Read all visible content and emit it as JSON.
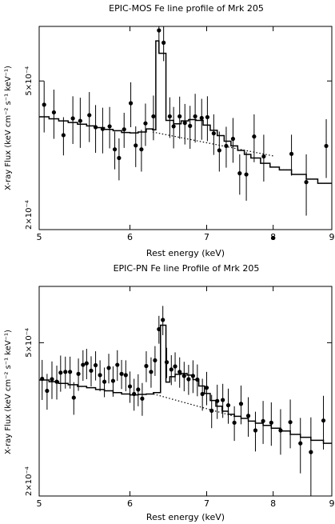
{
  "chart_data": [
    {
      "type": "scatter",
      "title": "EPIC-MOS Fe line profile of Mrk 205",
      "xlabel": "Rest energy (keV)",
      "ylabel": "X-ray Flux (keV cm⁻² s⁻¹ keV⁻¹)",
      "xscale": "log",
      "yscale": "log",
      "xlim": [
        5,
        9
      ],
      "ylim": [
        0.0002,
        0.0007
      ],
      "xticks": [
        5,
        6,
        7,
        8,
        9
      ],
      "yticks": [
        {
          "value": 0.0002,
          "label": "2×10⁻⁴"
        },
        {
          "value": 0.0005,
          "label": "5×10⁻⁴"
        }
      ],
      "series": [
        {
          "role": "data",
          "points": [
            [
              5.05,
              0.000432,
              6.8e-05
            ],
            [
              5.15,
              0.000412,
              6.2e-05
            ],
            [
              5.25,
              0.000358,
              4.2e-05
            ],
            [
              5.35,
              0.000397,
              5.8e-05
            ],
            [
              5.43,
              0.000391,
              6e-05
            ],
            [
              5.53,
              0.000405,
              6.2e-05
            ],
            [
              5.6,
              0.000376,
              5.5e-05
            ],
            [
              5.68,
              0.000372,
              5.2e-05
            ],
            [
              5.76,
              0.000378,
              4.8e-05
            ],
            [
              5.82,
              0.000328,
              3.8e-05
            ],
            [
              5.87,
              0.000311,
              4e-05
            ],
            [
              5.93,
              0.000371,
              4e-05
            ],
            [
              6.01,
              0.000436,
              6e-05
            ],
            [
              6.07,
              0.000336,
              4.2e-05
            ],
            [
              6.14,
              0.000328,
              4.2e-05
            ],
            [
              6.19,
              0.000385,
              5e-05
            ],
            [
              6.29,
              0.000402,
              5.5e-05
            ],
            [
              6.36,
              0.000683,
              7.2e-05
            ],
            [
              6.42,
              0.000633,
              6.8e-05
            ],
            [
              6.5,
              0.000402,
              5e-05
            ],
            [
              6.55,
              0.000378,
              4.8e-05
            ],
            [
              6.63,
              0.000402,
              5.2e-05
            ],
            [
              6.7,
              0.000386,
              4.8e-05
            ],
            [
              6.77,
              0.000379,
              5e-05
            ],
            [
              6.84,
              0.000402,
              6e-05
            ],
            [
              6.93,
              0.000398,
              5e-05
            ],
            [
              7.01,
              0.0004,
              5.5e-05
            ],
            [
              7.1,
              0.000362,
              4.5e-05
            ],
            [
              7.18,
              0.000326,
              4e-05
            ],
            [
              7.28,
              0.000335,
              4.2e-05
            ],
            [
              7.38,
              0.00035,
              4.8e-05
            ],
            [
              7.48,
              0.000283,
              3.5e-05
            ],
            [
              7.58,
              0.000281,
              4.2e-05
            ],
            [
              7.7,
              0.000355,
              5.2e-05
            ],
            [
              7.85,
              0.000314,
              4.5e-05
            ],
            [
              8.0,
              0.00019,
              1e-05
            ],
            [
              8.3,
              0.000319,
              4e-05
            ],
            [
              8.55,
              0.000268,
              5e-05
            ],
            [
              8.9,
              0.000335,
              6e-05
            ]
          ]
        },
        {
          "role": "model",
          "step": [
            [
              5.0,
              0.000401
            ],
            [
              5.1,
              0.000396
            ],
            [
              5.2,
              0.000391
            ],
            [
              5.3,
              0.000387
            ],
            [
              5.4,
              0.000383
            ],
            [
              5.5,
              0.000379
            ],
            [
              5.6,
              0.000375
            ],
            [
              5.7,
              0.000371
            ],
            [
              5.8,
              0.000368
            ],
            [
              5.9,
              0.000364
            ],
            [
              6.0,
              0.000363
            ],
            [
              6.1,
              0.000365
            ],
            [
              6.2,
              0.000372
            ],
            [
              6.28,
              0.00037
            ],
            [
              6.32,
              0.00064
            ],
            [
              6.36,
              0.000593
            ],
            [
              6.45,
              0.000392
            ],
            [
              6.55,
              0.000384
            ],
            [
              6.65,
              0.000391
            ],
            [
              6.75,
              0.000394
            ],
            [
              6.85,
              0.000392
            ],
            [
              6.95,
              0.000381
            ],
            [
              7.05,
              0.000369
            ],
            [
              7.15,
              0.000357
            ],
            [
              7.25,
              0.000345
            ],
            [
              7.35,
              0.000335
            ],
            [
              7.45,
              0.000326
            ],
            [
              7.55,
              0.000318
            ],
            [
              7.65,
              0.000311
            ],
            [
              7.8,
              0.000301
            ],
            [
              7.95,
              0.000294
            ],
            [
              8.1,
              0.000289
            ],
            [
              8.3,
              0.000281
            ],
            [
              8.55,
              0.000273
            ],
            [
              8.75,
              0.000266
            ],
            [
              9.0,
              0.000266
            ]
          ]
        },
        {
          "role": "continuum",
          "dotted": [
            [
              6.28,
              0.000365
            ],
            [
              8.0,
              0.000315
            ]
          ]
        }
      ]
    },
    {
      "type": "scatter",
      "title": "EPIC-PN Fe line Profile of Mrk 205",
      "xlabel": "Rest energy (keV)",
      "ylabel": "X-ray Flux (keV cm⁻² s⁻¹ keV⁻¹)",
      "xscale": "log",
      "yscale": "log",
      "xlim": [
        5,
        9
      ],
      "ylim": [
        0.0002,
        0.0007
      ],
      "xticks": [
        5,
        6,
        7,
        8,
        9
      ],
      "yticks": [
        {
          "value": 0.0002,
          "label": "2×10⁻⁴"
        },
        {
          "value": 0.0005,
          "label": "5×10⁻⁴"
        }
      ],
      "series": [
        {
          "role": "data",
          "points": [
            [
              5.03,
              0.000403,
              4.8e-05
            ],
            [
              5.08,
              0.000375,
              4e-05
            ],
            [
              5.13,
              0.000402,
              4.5e-05
            ],
            [
              5.18,
              0.000396,
              4e-05
            ],
            [
              5.22,
              0.000418,
              4.5e-05
            ],
            [
              5.27,
              0.00042,
              4e-05
            ],
            [
              5.32,
              0.00042,
              4e-05
            ],
            [
              5.36,
              0.00036,
              3.5e-05
            ],
            [
              5.41,
              0.000415,
              4e-05
            ],
            [
              5.46,
              0.000438,
              4e-05
            ],
            [
              5.5,
              0.000442,
              4e-05
            ],
            [
              5.55,
              0.000423,
              3.8e-05
            ],
            [
              5.6,
              0.000437,
              3.8e-05
            ],
            [
              5.65,
              0.000412,
              3.8e-05
            ],
            [
              5.7,
              0.000396,
              3.5e-05
            ],
            [
              5.75,
              0.00043,
              3.8e-05
            ],
            [
              5.8,
              0.000398,
              3.6e-05
            ],
            [
              5.85,
              0.000438,
              4e-05
            ],
            [
              5.9,
              0.000415,
              3.6e-05
            ],
            [
              5.95,
              0.000412,
              3.8e-05
            ],
            [
              6.0,
              0.000385,
              3.6e-05
            ],
            [
              6.05,
              0.000368,
              3.5e-05
            ],
            [
              6.1,
              0.000378,
              3.6e-05
            ],
            [
              6.15,
              0.000358,
              3.5e-05
            ],
            [
              6.2,
              0.000435,
              4e-05
            ],
            [
              6.26,
              0.00042,
              3.8e-05
            ],
            [
              6.31,
              0.00045,
              4e-05
            ],
            [
              6.36,
              0.000542,
              4.5e-05
            ],
            [
              6.41,
              0.000573,
              5e-05
            ],
            [
              6.46,
              0.000445,
              4e-05
            ],
            [
              6.52,
              0.000426,
              3.8e-05
            ],
            [
              6.57,
              0.000434,
              3.8e-05
            ],
            [
              6.63,
              0.00042,
              3.8e-05
            ],
            [
              6.69,
              0.00041,
              3.6e-05
            ],
            [
              6.75,
              0.000402,
              3.6e-05
            ],
            [
              6.81,
              0.00041,
              4e-05
            ],
            [
              6.87,
              0.000401,
              3.8e-05
            ],
            [
              6.94,
              0.000368,
              3.5e-05
            ],
            [
              7.0,
              0.000382,
              3.8e-05
            ],
            [
              7.07,
              0.000333,
              3.3e-05
            ],
            [
              7.15,
              0.000353,
              3.6e-05
            ],
            [
              7.23,
              0.000355,
              3.6e-05
            ],
            [
              7.31,
              0.000344,
              3.6e-05
            ],
            [
              7.4,
              0.00031,
              3.2e-05
            ],
            [
              7.5,
              0.000347,
              4e-05
            ],
            [
              7.61,
              0.000323,
              3.8e-05
            ],
            [
              7.72,
              0.000296,
              3.5e-05
            ],
            [
              7.84,
              0.000313,
              4e-05
            ],
            [
              7.97,
              0.00031,
              4e-05
            ],
            [
              8.12,
              0.000296,
              4e-05
            ],
            [
              8.28,
              0.000311,
              4.5e-05
            ],
            [
              8.45,
              0.000274,
              4.5e-05
            ],
            [
              8.63,
              0.00026,
              6e-05
            ],
            [
              8.85,
              0.000314,
              5e-05
            ]
          ]
        },
        {
          "role": "model",
          "step": [
            [
              5.0,
              0.0004
            ],
            [
              5.1,
              0.000396
            ],
            [
              5.2,
              0.000392
            ],
            [
              5.3,
              0.000389
            ],
            [
              5.4,
              0.000385
            ],
            [
              5.5,
              0.000382
            ],
            [
              5.6,
              0.000378
            ],
            [
              5.7,
              0.000375
            ],
            [
              5.8,
              0.000371
            ],
            [
              5.9,
              0.000368
            ],
            [
              6.0,
              0.000366
            ],
            [
              6.1,
              0.000367
            ],
            [
              6.2,
              0.000368
            ],
            [
              6.29,
              0.000371
            ],
            [
              6.38,
              0.000555
            ],
            [
              6.45,
              0.000395
            ],
            [
              6.5,
              0.000408
            ],
            [
              6.57,
              0.000414
            ],
            [
              6.65,
              0.000416
            ],
            [
              6.73,
              0.000412
            ],
            [
              6.81,
              0.000401
            ],
            [
              6.89,
              0.000386
            ],
            [
              6.97,
              0.000369
            ],
            [
              7.05,
              0.000354
            ],
            [
              7.13,
              0.000342
            ],
            [
              7.22,
              0.000332
            ],
            [
              7.31,
              0.000326
            ],
            [
              7.4,
              0.000322
            ],
            [
              7.5,
              0.000318
            ],
            [
              7.61,
              0.000313
            ],
            [
              7.72,
              0.000309
            ],
            [
              7.84,
              0.000305
            ],
            [
              7.97,
              0.0003
            ],
            [
              8.12,
              0.000295
            ],
            [
              8.28,
              0.000289
            ],
            [
              8.45,
              0.000284
            ],
            [
              8.63,
              0.000279
            ],
            [
              8.85,
              0.000274
            ],
            [
              9.0,
              0.000274
            ]
          ]
        },
        {
          "role": "continuum",
          "dotted": [
            [
              6.29,
              0.000368
            ],
            [
              7.4,
              0.000322
            ]
          ]
        }
      ]
    }
  ]
}
